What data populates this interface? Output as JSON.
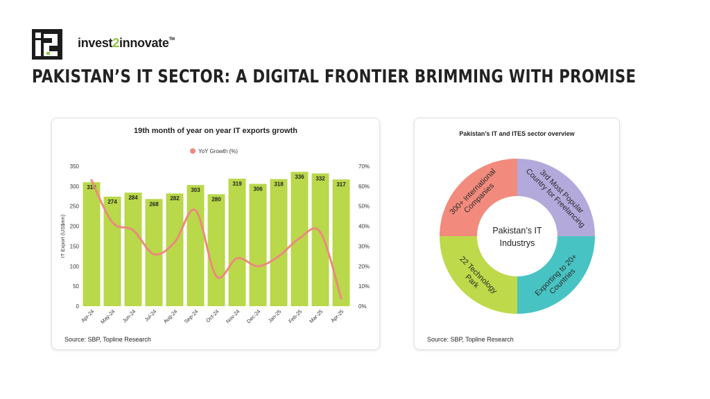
{
  "header": {
    "logo_text": "i2",
    "brand_prefix": "invest",
    "brand_mid": "2",
    "brand_suffix": "innovate",
    "brand_tm": "TM",
    "title": "PAKISTAN’S IT SECTOR: A DIGITAL FRONTIER BRIMMING WITH PROMISE"
  },
  "colors": {
    "bar": "#b9d84a",
    "line": "#ec8a7e",
    "brand_green": "#8dc63f"
  },
  "chart_data": [
    {
      "type": "bar",
      "title": "19th month of year on year IT exports growth",
      "ylabel": "IT Export (US$mn)",
      "y2label": "",
      "ylim": [
        0,
        350
      ],
      "y2lim": [
        0,
        70
      ],
      "yticks": [
        "0",
        "50",
        "100",
        "150",
        "200",
        "250",
        "300",
        "350"
      ],
      "y2ticks": [
        "0%",
        "10%",
        "20%",
        "30%",
        "40%",
        "50%",
        "60%",
        "70%"
      ],
      "categories": [
        "Apr-24",
        "May-24",
        "Jun-24",
        "Jul-24",
        "Aug-24",
        "Sep-24",
        "Oct-24",
        "Nov-24",
        "Dec-24",
        "Jan-25",
        "Feb-25",
        "Mar-25",
        "Apr-25"
      ],
      "values": [
        310,
        274,
        284,
        268,
        282,
        303,
        280,
        319,
        306,
        318,
        336,
        332,
        317
      ],
      "value_labels": [
        "310",
        "274",
        "284",
        "268",
        "282",
        "303",
        "280",
        "319",
        "306",
        "318",
        "336",
        "332",
        "317"
      ],
      "line_series": {
        "name": "YoY Growth (%)",
        "values": [
          63,
          42,
          38,
          26,
          32,
          48,
          15,
          24,
          20,
          25,
          34,
          37,
          4
        ]
      },
      "legend": "top",
      "source": "Source: SBP, Topline Research"
    },
    {
      "type": "pie",
      "title": "Pakistan’s IT and ITES sector overview",
      "center_label": [
        "Pakistan’s IT",
        "Industrys"
      ],
      "categories": [
        "3rd Most Popular Country for Freelancing",
        "Exporting to 20+ Countries",
        "22 Technology Park",
        "300+ International Companies"
      ],
      "segments": [
        {
          "lines": [
            "3rd Most Popular",
            "Country for Freelancing"
          ],
          "value": 25,
          "color": "#b3a9db"
        },
        {
          "lines": [
            "Exporting to 20+",
            "Countries"
          ],
          "value": 25,
          "color": "#48c3c3"
        },
        {
          "lines": [
            "22 Technology",
            "Park"
          ],
          "value": 25,
          "color": "#bed94a"
        },
        {
          "lines": [
            "300+ International",
            "Companies"
          ],
          "value": 25,
          "color": "#f28b7d"
        }
      ],
      "source": "Source: SBP, Topline Research"
    }
  ]
}
